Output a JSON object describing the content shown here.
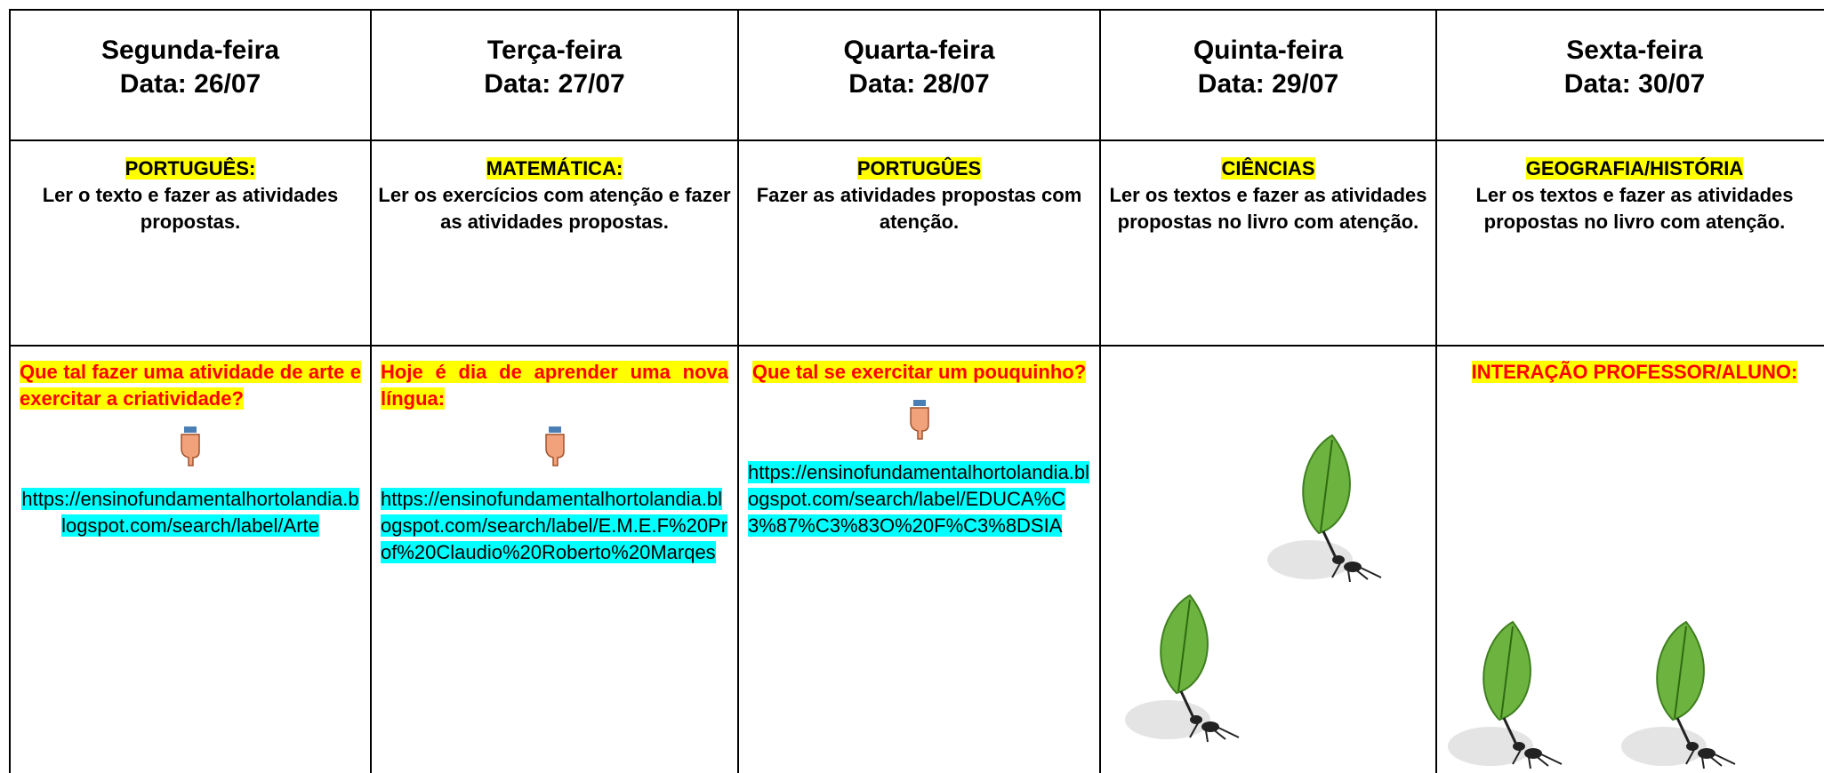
{
  "days": [
    {
      "day": "Segunda-feira",
      "date": "Data: 26/07",
      "subject": "PORTUGUÊS:",
      "task": "Ler o texto e fazer as atividades propostas.",
      "prompt": "Que tal fazer uma atividade de arte e exercitar a criatividade?",
      "link": "https://ensinofundamentalhortolandia.blogspot.com/search/label/Arte"
    },
    {
      "day": "Terça-feira",
      "date": "Data: 27/07",
      "subject": "MATEMÁTICA:",
      "task": "Ler os exercícios com atenção e fazer as atividades propostas.",
      "prompt": "Hoje é dia de aprender uma nova língua:",
      "link": "https://ensinofundamentalhortolandia.blogspot.com/search/label/E.M.E.F%20Prof%20Claudio%20Roberto%20Marqes"
    },
    {
      "day": "Quarta-feira",
      "date": "Data: 28/07",
      "subject": "PORTUGÛES",
      "task": "Fazer as atividades propostas com atenção.",
      "prompt": "Que tal se exercitar um pouquinho?",
      "link": "https://ensinofundamentalhortolandia.blogspot.com/search/label/EDUCA%C3%87%C3%83O%20F%C3%8DSIA"
    },
    {
      "day": "Quinta-feira",
      "date": "Data: 29/07",
      "subject": "CIÊNCIAS",
      "task": "Ler os textos e fazer as atividades propostas no livro com atenção."
    },
    {
      "day": "Sexta-feira",
      "date": "Data: 30/07",
      "subject": "GEOGRAFIA/HISTÓRIA",
      "task": "Ler os textos e fazer as atividades propostas no livro com atenção.",
      "prompt": "INTERAÇÃO PROFESSOR/ALUNO:"
    }
  ]
}
